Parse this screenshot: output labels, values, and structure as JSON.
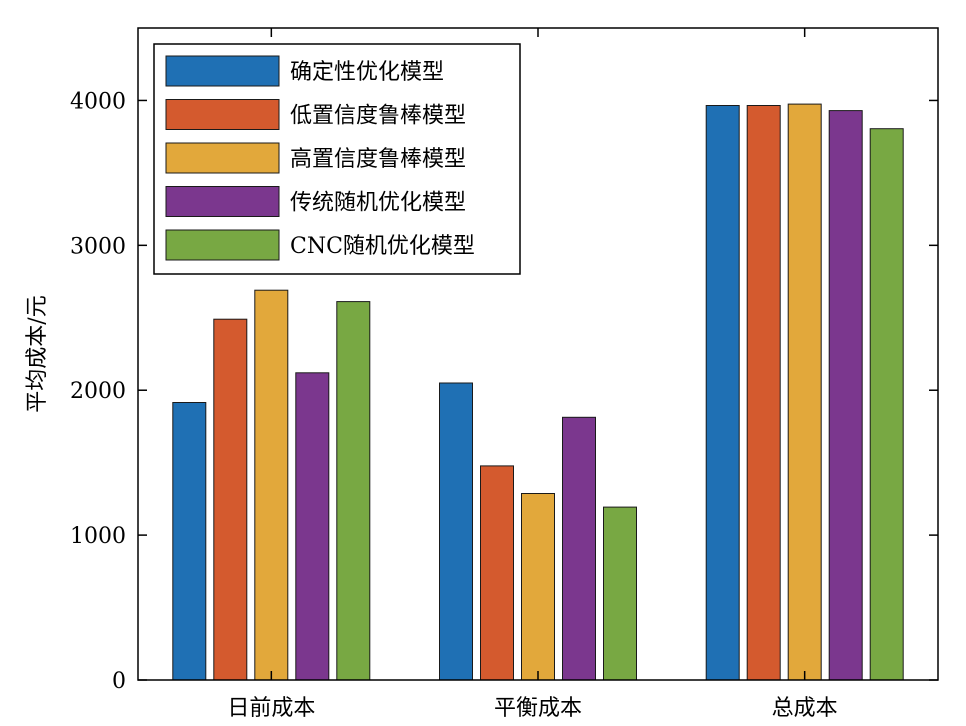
{
  "chart_data": {
    "type": "bar",
    "categories": [
      "日前成本",
      "平衡成本",
      "总成本"
    ],
    "ylabel": "平均成本/元",
    "xlabel": "",
    "title": "",
    "ylim": [
      0,
      4500
    ],
    "yticks": [
      0,
      1000,
      2000,
      3000,
      4000
    ],
    "grid": false,
    "legend_position": "top-left",
    "series": [
      {
        "name": "确定性优化模型",
        "color": "#1f70b4",
        "values": [
          1915,
          2050,
          3965
        ]
      },
      {
        "name": "低置信度鲁棒模型",
        "color": "#d45a2e",
        "values": [
          2490,
          1478,
          3965
        ]
      },
      {
        "name": "高置信度鲁棒模型",
        "color": "#e2a83b",
        "values": [
          2690,
          1287,
          3975
        ]
      },
      {
        "name": "传统随机优化模型",
        "color": "#7b378e",
        "values": [
          2120,
          1813,
          3930
        ]
      },
      {
        "name": "CNC随机优化模型",
        "color": "#78a843",
        "values": [
          2612,
          1193,
          3805
        ]
      }
    ]
  }
}
